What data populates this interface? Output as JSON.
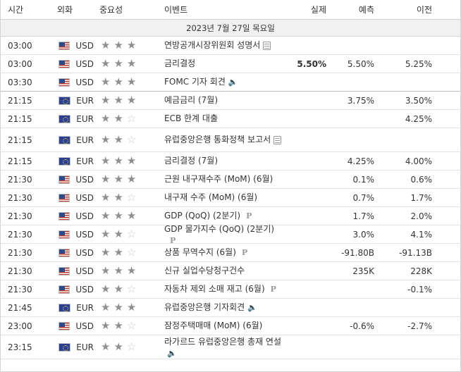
{
  "header": {
    "time": "시간",
    "currency": "외화",
    "importance": "중요성",
    "event": "이벤트",
    "actual": "실제",
    "forecast": "예측",
    "previous": "이전"
  },
  "date_label": "2023년 7월 27일 목요일",
  "rows": [
    {
      "time": "03:00",
      "flag": "us-flag-icon",
      "currency": "USD",
      "stars": 3,
      "event": "연방공개시장위원회 성명서",
      "icon": "document-icon",
      "actual": "",
      "forecast": "",
      "previous": ""
    },
    {
      "time": "03:00",
      "flag": "us-flag-icon",
      "currency": "USD",
      "stars": 3,
      "event": "금리결정",
      "icon": "",
      "actual": "5.50%",
      "forecast": "5.50%",
      "previous": "5.25%"
    },
    {
      "time": "03:30",
      "flag": "us-flag-icon",
      "currency": "USD",
      "stars": 3,
      "event": "FOMC 기자 회견",
      "icon": "speaker-icon",
      "actual": "",
      "forecast": "",
      "previous": ""
    },
    {
      "time": "21:15",
      "flag": "eu-flag-icon",
      "currency": "EUR",
      "stars": 3,
      "event": "예금금리 (7월)",
      "icon": "",
      "actual": "",
      "forecast": "3.75%",
      "previous": "3.50%"
    },
    {
      "time": "21:15",
      "flag": "eu-flag-icon",
      "currency": "EUR",
      "stars": 2,
      "event": "ECB 한계 대출",
      "icon": "",
      "actual": "",
      "forecast": "",
      "previous": "4.25%"
    },
    {
      "time": "21:15",
      "flag": "eu-flag-icon",
      "currency": "EUR",
      "stars": 2,
      "event": "유럽중앙은행 통화정책 보고서",
      "icon": "document-icon",
      "actual": "",
      "forecast": "",
      "previous": ""
    },
    {
      "time": "21:15",
      "flag": "eu-flag-icon",
      "currency": "EUR",
      "stars": 3,
      "event": "금리결정 (7월)",
      "icon": "",
      "actual": "",
      "forecast": "4.25%",
      "previous": "4.00%"
    },
    {
      "time": "21:30",
      "flag": "us-flag-icon",
      "currency": "USD",
      "stars": 3,
      "event": "근원 내구재수주 (MoM) (6월)",
      "icon": "",
      "actual": "",
      "forecast": "0.1%",
      "previous": "0.6%"
    },
    {
      "time": "21:30",
      "flag": "us-flag-icon",
      "currency": "USD",
      "stars": 2,
      "event": "내구재 수주 (MoM) (6월)",
      "icon": "",
      "actual": "",
      "forecast": "0.7%",
      "previous": "1.7%"
    },
    {
      "time": "21:30",
      "flag": "us-flag-icon",
      "currency": "USD",
      "stars": 3,
      "event": "GDP (QoQ) (2분기)",
      "icon": "preliminary-icon",
      "actual": "",
      "forecast": "1.7%",
      "previous": "2.0%"
    },
    {
      "time": "21:30",
      "flag": "us-flag-icon",
      "currency": "USD",
      "stars": 2,
      "event": "GDP 물가지수 (QoQ) (2분기)",
      "icon": "preliminary-icon",
      "actual": "",
      "forecast": "3.0%",
      "previous": "4.1%"
    },
    {
      "time": "21:30",
      "flag": "us-flag-icon",
      "currency": "USD",
      "stars": 2,
      "event": "상품 무역수지 (6월)",
      "icon": "preliminary-icon",
      "actual": "",
      "forecast": "-91.80B",
      "previous": "-91.13B"
    },
    {
      "time": "21:30",
      "flag": "us-flag-icon",
      "currency": "USD",
      "stars": 3,
      "event": "신규 실업수당청구건수",
      "icon": "",
      "actual": "",
      "forecast": "235K",
      "previous": "228K"
    },
    {
      "time": "21:30",
      "flag": "us-flag-icon",
      "currency": "USD",
      "stars": 2,
      "event": "자동차 제외 소매 재고 (6월)",
      "icon": "preliminary-icon",
      "actual": "",
      "forecast": "",
      "previous": "-0.1%"
    },
    {
      "time": "21:45",
      "flag": "eu-flag-icon",
      "currency": "EUR",
      "stars": 3,
      "event": "유럽중앙은행 기자회견",
      "icon": "speaker-icon",
      "actual": "",
      "forecast": "",
      "previous": ""
    },
    {
      "time": "23:00",
      "flag": "us-flag-icon",
      "currency": "USD",
      "stars": 2,
      "event": "잠정주택매매 (MoM) (6월)",
      "icon": "",
      "actual": "",
      "forecast": "-0.6%",
      "previous": "-2.7%"
    },
    {
      "time": "23:15",
      "flag": "eu-flag-icon",
      "currency": "EUR",
      "stars": 2,
      "event": "라가르드 유럽중앙은행 총재 연설",
      "icon": "speaker-icon",
      "actual": "",
      "forecast": "",
      "previous": ""
    }
  ]
}
